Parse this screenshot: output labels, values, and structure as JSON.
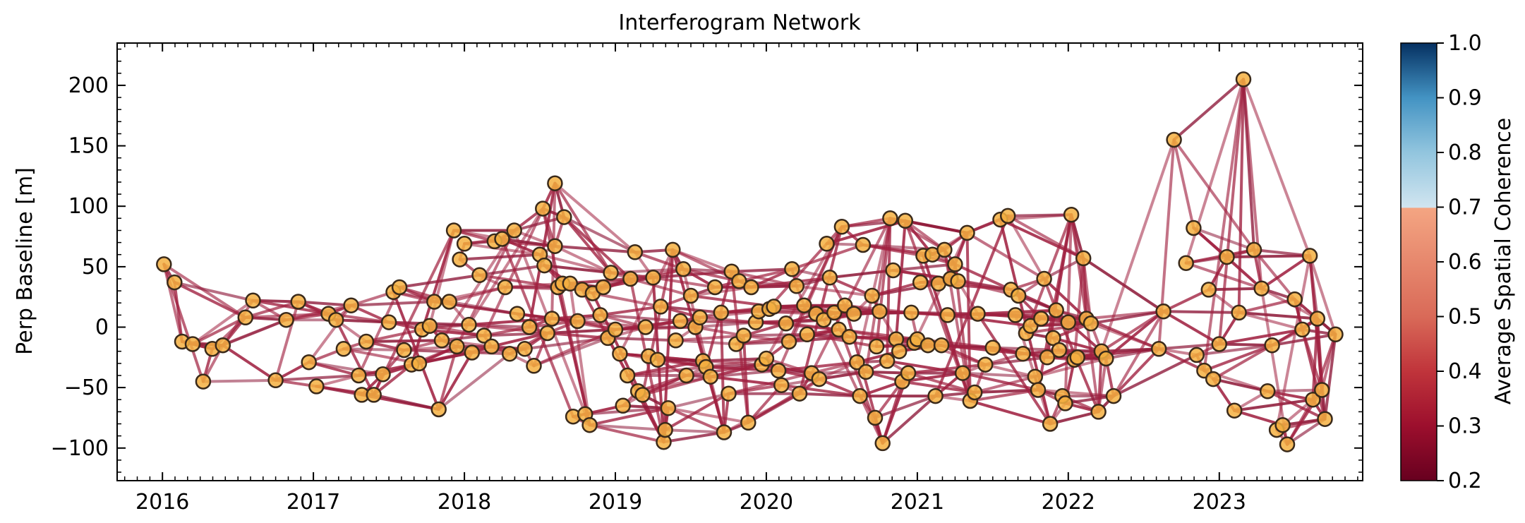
{
  "chart_data": {
    "type": "scatter",
    "title": "Interferogram Network",
    "xlabel": "",
    "ylabel": "Perp Baseline [m]",
    "xlim": [
      2015.7,
      2023.95
    ],
    "ylim": [
      -127,
      235
    ],
    "x_ticks": [
      2016,
      2017,
      2018,
      2019,
      2020,
      2021,
      2022,
      2023
    ],
    "y_ticks": [
      -100,
      -50,
      0,
      50,
      100,
      150,
      200
    ],
    "x_tick_labels": [
      "2016",
      "2017",
      "2018",
      "2019",
      "2020",
      "2021",
      "2022",
      "2023"
    ],
    "y_tick_labels": [
      "−100",
      "−50",
      "0",
      "50",
      "100",
      "150",
      "200"
    ],
    "grid": false,
    "colorbar": {
      "label": "Average Spatial Coherence",
      "range": [
        0.2,
        1.0
      ],
      "ticks": [
        "0.2",
        "0.3",
        "0.4",
        "0.5",
        "0.6",
        "0.7",
        "0.8",
        "0.9",
        "1.0"
      ]
    },
    "colors": {
      "marker_fill": "#f5b041",
      "marker_edge": "#3a2a1a",
      "edge_line": "#a02040"
    },
    "acquisitions": [
      [
        2016.01,
        52
      ],
      [
        2016.08,
        37
      ],
      [
        2016.13,
        -12
      ],
      [
        2016.2,
        -14
      ],
      [
        2016.27,
        -45
      ],
      [
        2016.33,
        -18
      ],
      [
        2016.4,
        -15
      ],
      [
        2016.55,
        8
      ],
      [
        2016.6,
        22
      ],
      [
        2016.75,
        -44
      ],
      [
        2016.82,
        6
      ],
      [
        2016.9,
        21
      ],
      [
        2016.97,
        -29
      ],
      [
        2017.02,
        -49
      ],
      [
        2017.1,
        11
      ],
      [
        2017.15,
        6
      ],
      [
        2017.2,
        -18
      ],
      [
        2017.25,
        18
      ],
      [
        2017.3,
        -40
      ],
      [
        2017.32,
        -56
      ],
      [
        2017.35,
        -12
      ],
      [
        2017.4,
        -56
      ],
      [
        2017.46,
        -39
      ],
      [
        2017.5,
        4
      ],
      [
        2017.53,
        29
      ],
      [
        2017.57,
        33
      ],
      [
        2017.6,
        -19
      ],
      [
        2017.65,
        -31
      ],
      [
        2017.7,
        -30
      ],
      [
        2017.72,
        -2
      ],
      [
        2017.77,
        1
      ],
      [
        2017.8,
        21
      ],
      [
        2017.85,
        -11
      ],
      [
        2017.83,
        -68
      ],
      [
        2017.9,
        21
      ],
      [
        2017.95,
        -16
      ],
      [
        2017.93,
        80
      ],
      [
        2017.97,
        56
      ],
      [
        2018.0,
        69
      ],
      [
        2018.03,
        2
      ],
      [
        2018.05,
        -21
      ],
      [
        2018.1,
        43
      ],
      [
        2018.13,
        -7
      ],
      [
        2018.18,
        -16
      ],
      [
        2018.2,
        71
      ],
      [
        2018.25,
        73
      ],
      [
        2018.27,
        33
      ],
      [
        2018.3,
        -22
      ],
      [
        2018.33,
        80
      ],
      [
        2018.35,
        11
      ],
      [
        2018.4,
        -18
      ],
      [
        2018.43,
        0
      ],
      [
        2018.46,
        -32
      ],
      [
        2018.5,
        60
      ],
      [
        2018.53,
        51
      ],
      [
        2018.55,
        -5
      ],
      [
        2018.58,
        7
      ],
      [
        2018.6,
        67
      ],
      [
        2018.62,
        33
      ],
      [
        2018.65,
        36
      ],
      [
        2018.7,
        36
      ],
      [
        2018.75,
        5
      ],
      [
        2018.78,
        31
      ],
      [
        2018.8,
        -72
      ],
      [
        2018.83,
        -81
      ],
      [
        2018.72,
        -74
      ],
      [
        2018.85,
        28
      ],
      [
        2018.9,
        10
      ],
      [
        2018.92,
        33
      ],
      [
        2018.95,
        -9
      ],
      [
        2018.52,
        98
      ],
      [
        2018.6,
        119
      ],
      [
        2018.66,
        91
      ],
      [
        2018.97,
        45
      ],
      [
        2019.0,
        -2
      ],
      [
        2019.03,
        -22
      ],
      [
        2019.05,
        -65
      ],
      [
        2019.08,
        -40
      ],
      [
        2019.1,
        40
      ],
      [
        2019.13,
        62
      ],
      [
        2019.15,
        -53
      ],
      [
        2019.18,
        -56
      ],
      [
        2019.2,
        0
      ],
      [
        2019.22,
        -24
      ],
      [
        2019.25,
        41
      ],
      [
        2019.28,
        -27
      ],
      [
        2019.3,
        17
      ],
      [
        2019.33,
        -85
      ],
      [
        2019.32,
        -95
      ],
      [
        2019.35,
        -67
      ],
      [
        2019.38,
        64
      ],
      [
        2019.4,
        -11
      ],
      [
        2019.43,
        5
      ],
      [
        2019.45,
        48
      ],
      [
        2019.47,
        -40
      ],
      [
        2019.5,
        26
      ],
      [
        2019.53,
        0
      ],
      [
        2019.56,
        8
      ],
      [
        2019.58,
        -28
      ],
      [
        2019.6,
        -33
      ],
      [
        2019.63,
        -41
      ],
      [
        2019.66,
        33
      ],
      [
        2019.7,
        12
      ],
      [
        2019.72,
        -87
      ],
      [
        2019.75,
        -55
      ],
      [
        2019.77,
        46
      ],
      [
        2019.8,
        -14
      ],
      [
        2019.82,
        38
      ],
      [
        2019.85,
        -7
      ],
      [
        2019.88,
        -79
      ],
      [
        2019.9,
        33
      ],
      [
        2019.93,
        4
      ],
      [
        2019.95,
        13
      ],
      [
        2019.97,
        -31
      ],
      [
        2020.0,
        -26
      ],
      [
        2020.02,
        15
      ],
      [
        2020.05,
        17
      ],
      [
        2020.08,
        -36
      ],
      [
        2020.1,
        -48
      ],
      [
        2020.13,
        3
      ],
      [
        2020.15,
        -12
      ],
      [
        2020.17,
        48
      ],
      [
        2020.2,
        34
      ],
      [
        2020.22,
        -55
      ],
      [
        2020.25,
        18
      ],
      [
        2020.27,
        -6
      ],
      [
        2020.3,
        -38
      ],
      [
        2020.33,
        11
      ],
      [
        2020.35,
        -43
      ],
      [
        2020.38,
        6
      ],
      [
        2020.4,
        69
      ],
      [
        2020.42,
        41
      ],
      [
        2020.45,
        12
      ],
      [
        2020.48,
        -2
      ],
      [
        2020.5,
        83
      ],
      [
        2020.52,
        18
      ],
      [
        2020.55,
        -8
      ],
      [
        2020.58,
        11
      ],
      [
        2020.6,
        -29
      ],
      [
        2020.62,
        -57
      ],
      [
        2020.64,
        68
      ],
      [
        2020.66,
        -37
      ],
      [
        2020.7,
        26
      ],
      [
        2020.72,
        -75
      ],
      [
        2020.73,
        -16
      ],
      [
        2020.75,
        13
      ],
      [
        2020.77,
        -96
      ],
      [
        2020.8,
        -28
      ],
      [
        2020.82,
        90
      ],
      [
        2020.84,
        47
      ],
      [
        2020.86,
        -10
      ],
      [
        2020.88,
        -20
      ],
      [
        2020.9,
        -45
      ],
      [
        2020.92,
        88
      ],
      [
        2020.94,
        -38
      ],
      [
        2020.96,
        12
      ],
      [
        2020.98,
        -13
      ],
      [
        2021.0,
        -10
      ],
      [
        2021.02,
        37
      ],
      [
        2021.04,
        59
      ],
      [
        2021.07,
        -15
      ],
      [
        2021.1,
        60
      ],
      [
        2021.12,
        -57
      ],
      [
        2021.14,
        36
      ],
      [
        2021.16,
        -15
      ],
      [
        2021.18,
        64
      ],
      [
        2021.2,
        10
      ],
      [
        2021.22,
        40
      ],
      [
        2021.25,
        52
      ],
      [
        2021.27,
        38
      ],
      [
        2021.3,
        -38
      ],
      [
        2021.33,
        78
      ],
      [
        2021.35,
        -61
      ],
      [
        2021.38,
        -54
      ],
      [
        2021.4,
        11
      ],
      [
        2021.45,
        -31
      ],
      [
        2021.5,
        -17
      ],
      [
        2021.55,
        89
      ],
      [
        2021.6,
        92
      ],
      [
        2021.62,
        31
      ],
      [
        2021.65,
        10
      ],
      [
        2021.67,
        26
      ],
      [
        2021.7,
        -22
      ],
      [
        2021.72,
        -5
      ],
      [
        2021.75,
        1
      ],
      [
        2021.78,
        -41
      ],
      [
        2021.8,
        -52
      ],
      [
        2021.82,
        7
      ],
      [
        2021.84,
        40
      ],
      [
        2021.86,
        -25
      ],
      [
        2021.88,
        -80
      ],
      [
        2021.9,
        -9
      ],
      [
        2021.92,
        14
      ],
      [
        2021.94,
        -19
      ],
      [
        2021.96,
        -57
      ],
      [
        2021.98,
        -63
      ],
      [
        2022.0,
        4
      ],
      [
        2022.02,
        93
      ],
      [
        2022.04,
        -27
      ],
      [
        2022.06,
        -25
      ],
      [
        2022.1,
        57
      ],
      [
        2022.12,
        7
      ],
      [
        2022.15,
        3
      ],
      [
        2022.2,
        -70
      ],
      [
        2022.22,
        -20
      ],
      [
        2022.25,
        -26
      ],
      [
        2022.3,
        -57
      ],
      [
        2022.6,
        -18
      ],
      [
        2022.63,
        13
      ],
      [
        2022.7,
        155
      ],
      [
        2022.78,
        53
      ],
      [
        2022.83,
        82
      ],
      [
        2022.85,
        -23
      ],
      [
        2022.9,
        -36
      ],
      [
        2022.93,
        31
      ],
      [
        2022.96,
        -43
      ],
      [
        2023.0,
        -14
      ],
      [
        2023.05,
        58
      ],
      [
        2023.1,
        -69
      ],
      [
        2023.13,
        12
      ],
      [
        2023.16,
        205
      ],
      [
        2023.23,
        64
      ],
      [
        2023.28,
        32
      ],
      [
        2023.32,
        -53
      ],
      [
        2023.35,
        -15
      ],
      [
        2023.38,
        -85
      ],
      [
        2023.42,
        -81
      ],
      [
        2023.45,
        -97
      ],
      [
        2023.5,
        23
      ],
      [
        2023.55,
        -2
      ],
      [
        2023.6,
        59
      ],
      [
        2023.62,
        -60
      ],
      [
        2023.65,
        7
      ],
      [
        2023.68,
        -52
      ],
      [
        2023.7,
        -76
      ],
      [
        2023.77,
        -6
      ]
    ]
  }
}
